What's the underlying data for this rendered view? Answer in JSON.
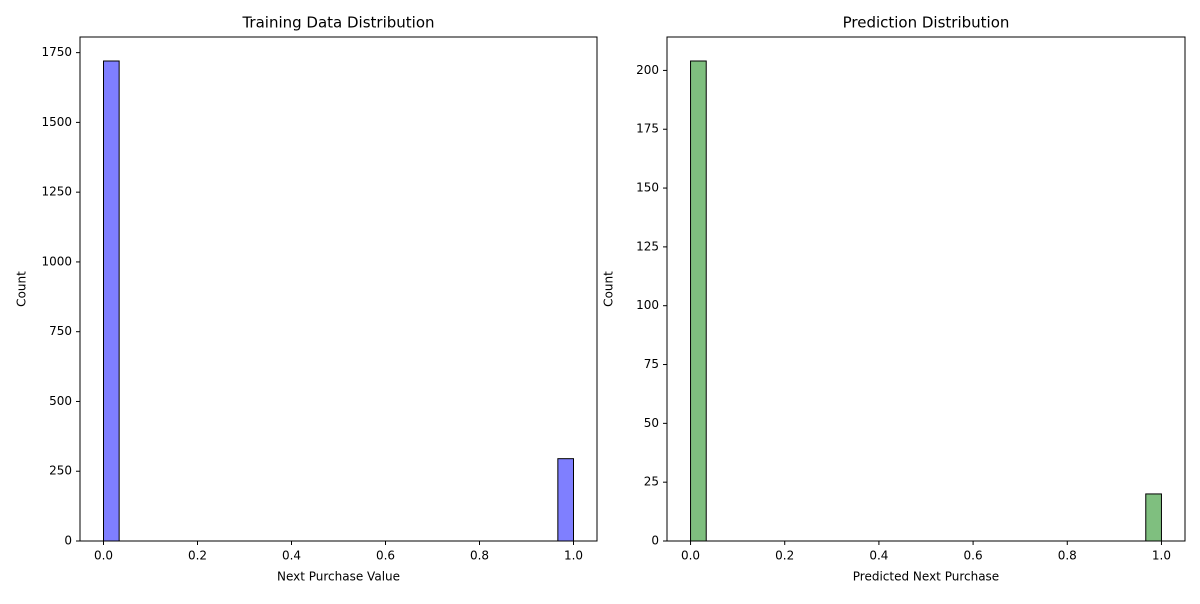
{
  "chart_data": [
    {
      "type": "histogram",
      "title": "Training Data Distribution",
      "xlabel": "Next Purchase Value",
      "ylabel": "Count",
      "bins": [
        0,
        0.0333,
        0.0667,
        0.1,
        0.1333,
        0.1667,
        0.2,
        0.2333,
        0.2667,
        0.3,
        0.3333,
        0.3667,
        0.4,
        0.4333,
        0.4667,
        0.5,
        0.5333,
        0.5667,
        0.6,
        0.6333,
        0.6667,
        0.7,
        0.7333,
        0.7667,
        0.8,
        0.8333,
        0.8667,
        0.9,
        0.9333,
        0.9667,
        1
      ],
      "counts": [
        1720,
        0,
        0,
        0,
        0,
        0,
        0,
        0,
        0,
        0,
        0,
        0,
        0,
        0,
        0,
        0,
        0,
        0,
        0,
        0,
        0,
        0,
        0,
        0,
        0,
        0,
        0,
        0,
        0,
        295
      ],
      "color": "blue",
      "xlim": [
        -0.05,
        1.05
      ],
      "ylim": [
        0,
        1806
      ],
      "xticks": [
        {
          "value": 0,
          "label": "0.0"
        },
        0.2,
        0.4,
        0.6,
        0.8,
        {
          "value": 1,
          "label": "1.0"
        }
      ],
      "yticks": [
        0,
        250,
        500,
        750,
        1000,
        1250,
        1500,
        1750
      ]
    },
    {
      "type": "histogram",
      "title": "Prediction Distribution",
      "xlabel": "Predicted Next Purchase",
      "ylabel": "Count",
      "bins": [
        0,
        0.0333,
        0.0667,
        0.1,
        0.1333,
        0.1667,
        0.2,
        0.2333,
        0.2667,
        0.3,
        0.3333,
        0.3667,
        0.4,
        0.4333,
        0.4667,
        0.5,
        0.5333,
        0.5667,
        0.6,
        0.6333,
        0.6667,
        0.7,
        0.7333,
        0.7667,
        0.8,
        0.8333,
        0.8667,
        0.9,
        0.9333,
        0.9667,
        1
      ],
      "counts": [
        204,
        0,
        0,
        0,
        0,
        0,
        0,
        0,
        0,
        0,
        0,
        0,
        0,
        0,
        0,
        0,
        0,
        0,
        0,
        0,
        0,
        0,
        0,
        0,
        0,
        0,
        0,
        0,
        0,
        20
      ],
      "color": "green",
      "xlim": [
        -0.05,
        1.05
      ],
      "ylim": [
        0,
        214.2
      ],
      "xticks": [
        {
          "value": 0,
          "label": "0.0"
        },
        0.2,
        0.4,
        0.6,
        0.8,
        {
          "value": 1,
          "label": "1.0"
        }
      ],
      "yticks": [
        0,
        25,
        50,
        75,
        100,
        125,
        150,
        175,
        200
      ]
    }
  ]
}
